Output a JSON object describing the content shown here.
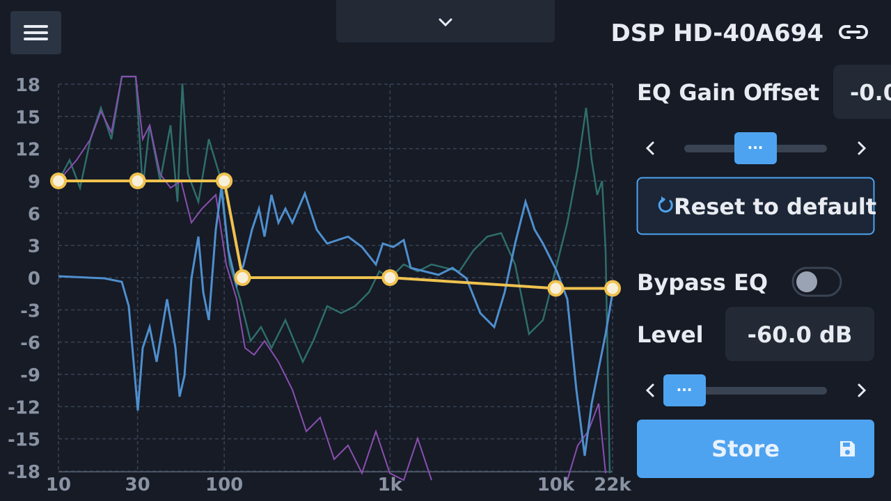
{
  "header": {
    "title": "DSP HD-40A694"
  },
  "chart": {
    "yticks": [
      18,
      15,
      12,
      9,
      6,
      3,
      0,
      -3,
      -6,
      -9,
      -12,
      -15,
      -18
    ],
    "ylim": [
      -18,
      18
    ],
    "xlim": [
      10,
      22000
    ],
    "xticks": [
      10,
      30,
      100,
      {
        "value": 1000,
        "label": "1k"
      },
      {
        "value": 10000,
        "label": "10k"
      },
      {
        "value": 22000,
        "label": "22k"
      }
    ],
    "eq_points": [
      {
        "freq": 10,
        "gain": 9
      },
      {
        "freq": 30,
        "gain": 9
      },
      {
        "freq": 100,
        "gain": 9
      },
      {
        "freq": 129,
        "gain": 0
      },
      {
        "freq": 1000,
        "gain": 0
      },
      {
        "freq": 10000,
        "gain": -1
      },
      {
        "freq": 22000,
        "gain": -1
      }
    ]
  },
  "controls": {
    "eq_gain_offset": {
      "label": "EQ Gain Offset",
      "value": "-0.0"
    },
    "reset_button": "Reset to default",
    "bypass": {
      "label": "Bypass EQ"
    },
    "level": {
      "label": "Level",
      "value": "-60.0 dB"
    },
    "store_button": "Store"
  }
}
